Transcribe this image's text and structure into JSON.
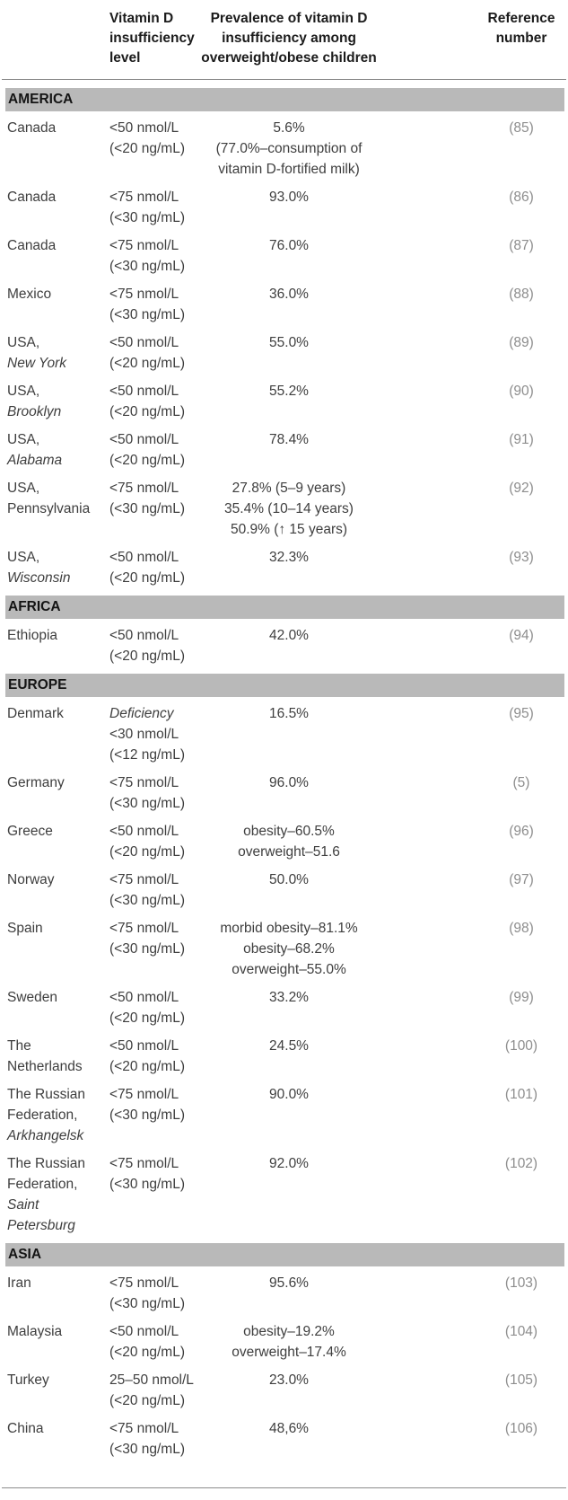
{
  "table": {
    "header": {
      "country": "",
      "level": "Vitamin D insufficiency level",
      "prevalence": "Prevalence of vitamin D insufficiency among overweight/obese children",
      "reference": "Reference number"
    },
    "sections": [
      {
        "name": "AMERICA",
        "rows": [
          {
            "country": [
              "Canada"
            ],
            "level": [
              "<50 nmol/L",
              "(<20 ng/mL)"
            ],
            "prevalence": [
              "5.6%",
              "(77.0%–consumption of",
              "vitamin D-fortified milk)"
            ],
            "ref": "(85)"
          },
          {
            "country": [
              "Canada"
            ],
            "level": [
              "<75 nmol/L",
              "(<30 ng/mL)"
            ],
            "prevalence": [
              "93.0%"
            ],
            "ref": "(86)"
          },
          {
            "country": [
              "Canada"
            ],
            "level": [
              "<75 nmol/L",
              "(<30 ng/mL)"
            ],
            "prevalence": [
              "76.0%"
            ],
            "ref": "(87)"
          },
          {
            "country": [
              "Mexico"
            ],
            "level": [
              "<75 nmol/L",
              "(<30 ng/mL)"
            ],
            "prevalence": [
              "36.0%"
            ],
            "ref": "(88)"
          },
          {
            "country": [
              "USA,",
              "New York"
            ],
            "country_italics": [
              1
            ],
            "level": [
              "<50 nmol/L",
              "(<20 ng/mL)"
            ],
            "prevalence": [
              "55.0%"
            ],
            "ref": "(89)"
          },
          {
            "country": [
              "USA,",
              "Brooklyn"
            ],
            "country_italics": [
              1
            ],
            "level": [
              "<50 nmol/L",
              "(<20 ng/mL)"
            ],
            "prevalence": [
              "55.2%"
            ],
            "ref": "(90)"
          },
          {
            "country": [
              "USA,",
              "Alabama"
            ],
            "country_italics": [
              1
            ],
            "level": [
              "<50 nmol/L",
              "(<20 ng/mL)"
            ],
            "prevalence": [
              "78.4%"
            ],
            "ref": "(91)"
          },
          {
            "country": [
              "USA,",
              "Pennsylvania"
            ],
            "level": [
              "<75 nmol/L",
              "(<30 ng/mL)"
            ],
            "prevalence": [
              "27.8% (5–9 years)",
              "35.4% (10–14 years)",
              "50.9% (↑ 15 years)"
            ],
            "ref": "(92)"
          },
          {
            "country": [
              "USA,",
              "Wisconsin"
            ],
            "country_italics": [
              1
            ],
            "level": [
              "<50 nmol/L",
              "(<20 ng/mL)"
            ],
            "prevalence": [
              "32.3%"
            ],
            "ref": "(93)"
          }
        ]
      },
      {
        "name": "AFRICA",
        "rows": [
          {
            "country": [
              "Ethiopia"
            ],
            "level": [
              "<50 nmol/L",
              "(<20 ng/mL)"
            ],
            "prevalence": [
              "42.0%"
            ],
            "ref": "(94)"
          }
        ]
      },
      {
        "name": "EUROPE",
        "rows": [
          {
            "country": [
              "Denmark"
            ],
            "level": [
              "Deficiency",
              "<30 nmol/L",
              "(<12 ng/mL)"
            ],
            "level_italics": [
              0
            ],
            "prevalence": [
              "16.5%"
            ],
            "ref": "(95)"
          },
          {
            "country": [
              "Germany"
            ],
            "level": [
              "<75 nmol/L",
              "(<30 ng/mL)"
            ],
            "prevalence": [
              "96.0%"
            ],
            "ref": "(5)"
          },
          {
            "country": [
              "Greece"
            ],
            "level": [
              "<50 nmol/L",
              "(<20 ng/mL)"
            ],
            "prevalence": [
              "obesity–60.5%",
              "overweight–51.6"
            ],
            "ref": "(96)"
          },
          {
            "country": [
              "Norway"
            ],
            "level": [
              "<75 nmol/L",
              "(<30 ng/mL)"
            ],
            "prevalence": [
              "50.0%"
            ],
            "ref": "(97)"
          },
          {
            "country": [
              "Spain"
            ],
            "level": [
              "<75 nmol/L",
              "(<30 ng/mL)"
            ],
            "prevalence": [
              "morbid obesity–81.1%",
              "obesity–68.2%",
              "overweight–55.0%"
            ],
            "ref": "(98)"
          },
          {
            "country": [
              "Sweden"
            ],
            "level": [
              "<50 nmol/L",
              "(<20 ng/mL)"
            ],
            "prevalence": [
              "33.2%"
            ],
            "ref": "(99)"
          },
          {
            "country": [
              "The",
              "Netherlands"
            ],
            "level": [
              "<50 nmol/L",
              "(<20 ng/mL)"
            ],
            "prevalence": [
              "24.5%"
            ],
            "ref": "(100)"
          },
          {
            "country": [
              "The Russian",
              "Federation,",
              "Arkhangelsk"
            ],
            "country_italics": [
              2
            ],
            "level": [
              "<75 nmol/L",
              "(<30 ng/mL)"
            ],
            "prevalence": [
              "90.0%"
            ],
            "ref": "(101)"
          },
          {
            "country": [
              "The Russian",
              "Federation,",
              "Saint",
              "Petersburg"
            ],
            "country_italics": [
              2,
              3
            ],
            "level": [
              "<75 nmol/L",
              "(<30 ng/mL)"
            ],
            "prevalence": [
              "92.0%"
            ],
            "ref": "(102)"
          }
        ]
      },
      {
        "name": "ASIA",
        "rows": [
          {
            "country": [
              "Iran"
            ],
            "level": [
              "<75 nmol/L",
              "(<30 ng/mL)"
            ],
            "prevalence": [
              "95.6%"
            ],
            "ref": "(103)"
          },
          {
            "country": [
              "Malaysia"
            ],
            "level": [
              "<50 nmol/L",
              "(<20 ng/mL)"
            ],
            "prevalence": [
              "obesity–19.2%",
              "overweight–17.4%"
            ],
            "ref": "(104)"
          },
          {
            "country": [
              "Turkey"
            ],
            "level": [
              "25–50 nmol/L",
              "(<20 ng/mL)"
            ],
            "prevalence": [
              "23.0%"
            ],
            "ref": "(105)"
          },
          {
            "country": [
              "China"
            ],
            "level": [
              "<75 nmol/L",
              "(<30 ng/mL)"
            ],
            "prevalence": [
              "48,6%"
            ],
            "ref": "(106)"
          }
        ]
      }
    ]
  },
  "colors": {
    "section_banner_bg": "#b9b9b9",
    "body_text": "#3e3e3e",
    "header_text": "#1b1b1b",
    "reference_text": "#8d8d8d",
    "rule": "#8c8c8c"
  }
}
